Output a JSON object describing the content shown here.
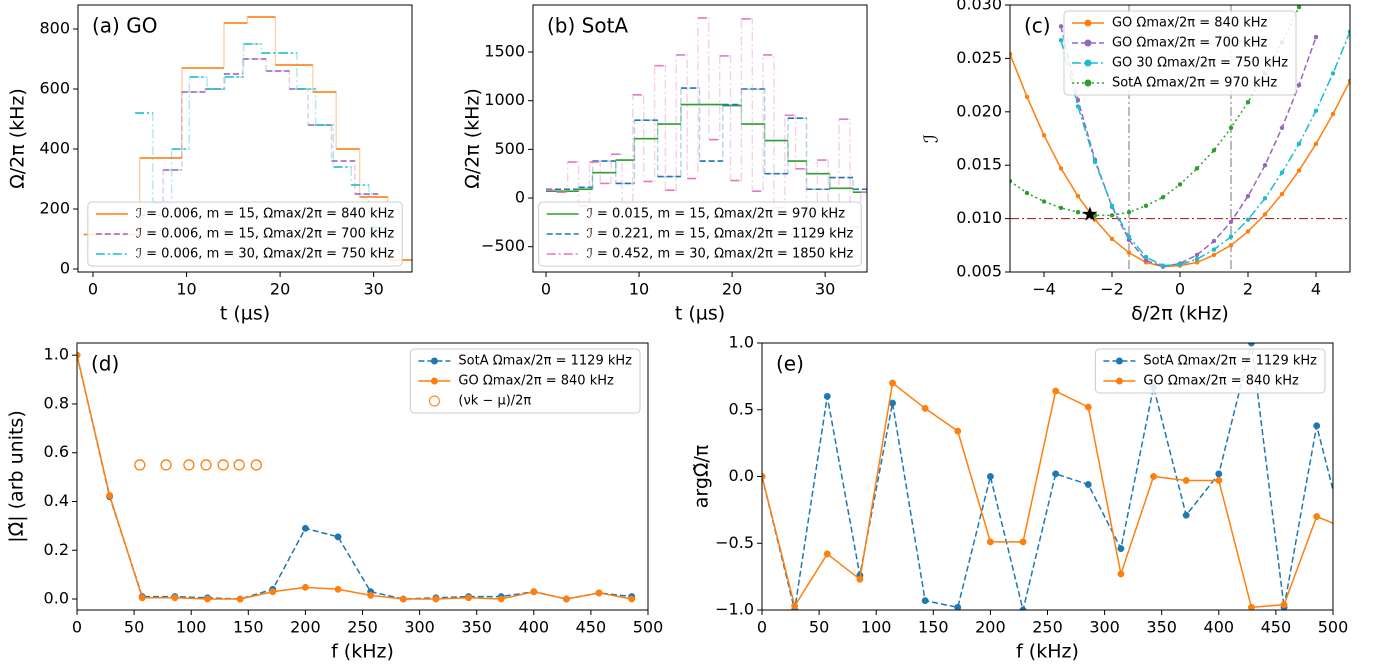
{
  "chart_data": [
    {
      "type": "step",
      "label": "(a) GO",
      "xlabel": "t (µs)",
      "ylabel": "Ω/2π (kHz)",
      "xlim": [
        -1.6,
        34.1
      ],
      "ylim": [
        -10,
        880
      ],
      "xticks": [
        0,
        10,
        20,
        30
      ],
      "yticks": [
        0,
        200,
        400,
        600,
        800
      ],
      "legend": "lower center",
      "series": [
        {
          "name": "ℐ = 0.006,  m = 15,  Ωmax/2π = 840 kHz",
          "color": "#ff7f0e",
          "line": "solid",
          "bins": [
            -1,
            5,
            9.5,
            14,
            16.5,
            19.5,
            23.5,
            26,
            28.5,
            31.5,
            35
          ],
          "values": [
            115,
            370,
            670,
            820,
            840,
            680,
            590,
            400,
            240,
            30
          ]
        },
        {
          "name": "ℐ = 0.006,  m = 15,  Ωmax/2π = 700 kHz",
          "color": "#9467bd",
          "line": "dashed",
          "bins": [
            5,
            7.5,
            9.5,
            12,
            14,
            16,
            18.5,
            21,
            23,
            25.5,
            28,
            30.5
          ],
          "values": [
            180,
            330,
            590,
            600,
            650,
            700,
            660,
            600,
            480,
            360,
            250
          ]
        },
        {
          "name": "ℐ = 0.006,  m = 30,  Ωmax/2π = 750 kHz",
          "color": "#17becf",
          "line": "dashdot",
          "bins": [
            4.5,
            6.4,
            8.4,
            10.3,
            12.2,
            14.1,
            16.1,
            18,
            19.9,
            21.8,
            23.8,
            25.7,
            27.6,
            29.5,
            31.5
          ],
          "values": [
            520,
            220,
            400,
            640,
            600,
            640,
            750,
            720,
            720,
            600,
            480,
            340,
            280,
            140
          ]
        }
      ]
    },
    {
      "type": "step",
      "label": "(b) SotA",
      "xlabel": "t (µs)",
      "ylabel": "Ω/2π (kHz)",
      "xlim": [
        -1.4,
        34.5
      ],
      "ylim": [
        -760,
        1983
      ],
      "xticks": [
        0,
        10,
        20,
        30
      ],
      "yticks": [
        {
          "value": -500,
          "label": "−500"
        },
        0,
        500,
        1000,
        1500
      ],
      "legend": "lower center",
      "series": [
        {
          "name": "ℐ = 0.015,  m = 15,  Ωmax/2π = 970 kHz",
          "color": "#2ca02c",
          "line": "solid",
          "bins": [
            0,
            3.5,
            5,
            7.5,
            9.5,
            12,
            14.5,
            16.5,
            19,
            21,
            23.5,
            26,
            28,
            30.5,
            33,
            35
          ],
          "values": [
            70,
            90,
            260,
            390,
            610,
            760,
            960,
            960,
            950,
            760,
            590,
            380,
            250,
            100,
            60
          ]
        },
        {
          "name": "ℐ = 0.221,  m = 15,  Ωmax/2π = 1129 kHz",
          "color": "#1f77b4",
          "line": "dashed",
          "bins": [
            0,
            3.5,
            5,
            7.5,
            9.5,
            12,
            14.5,
            16.5,
            19,
            21,
            23.5,
            26,
            28,
            30.5,
            33,
            35
          ],
          "values": [
            90,
            110,
            380,
            150,
            800,
            220,
            1130,
            380,
            960,
            1120,
            250,
            820,
            90,
            210,
            90
          ]
        },
        {
          "name": "ℐ = 0.452,  m = 30,  Ωmax/2π = 1850 kHz",
          "color": "#e377c2",
          "line": "dashdot",
          "bins": [
            0,
            1.17,
            2.33,
            3.5,
            4.67,
            5.83,
            7,
            8.17,
            9.33,
            10.5,
            11.67,
            12.83,
            14,
            15.17,
            16.33,
            17.5,
            18.67,
            19.83,
            21,
            22.17,
            23.33,
            24.5,
            25.67,
            26.83,
            28,
            29.17,
            30.33,
            31.5,
            32.67,
            33.83,
            35
          ],
          "values": [
            80,
            60,
            370,
            -80,
            370,
            150,
            450,
            -50,
            1060,
            170,
            1360,
            80,
            1470,
            200,
            1850,
            600,
            1460,
            180,
            1840,
            70,
            1470,
            -100,
            850,
            300,
            -150,
            390,
            -200,
            810,
            -300,
            60
          ]
        }
      ]
    },
    {
      "type": "line",
      "label": "(c)",
      "xlabel": "δ/2π (kHz)",
      "ylabel": "ℐ",
      "xlim": [
        -5,
        5
      ],
      "ylim": [
        0.005,
        0.03
      ],
      "xticks": [
        {
          "value": -4,
          "label": "−4"
        },
        {
          "value": -2,
          "label": "−2"
        },
        0,
        2,
        4
      ],
      "yticks": [
        {
          "value": 0.005,
          "label": "0.005"
        },
        {
          "value": 0.01,
          "label": "0.010"
        },
        {
          "value": 0.015,
          "label": "0.015"
        },
        {
          "value": 0.02,
          "label": "0.020"
        },
        {
          "value": 0.025,
          "label": "0.025"
        },
        {
          "value": 0.03,
          "label": "0.030"
        }
      ],
      "legend": "upper center",
      "hline": 0.01,
      "vlines": [
        -1.5,
        1.5
      ],
      "star": {
        "x": -2.65,
        "y": 0.0104
      },
      "series": [
        {
          "name": "GO Ωmax/2π = 840 kHz",
          "color": "#ff7f0e",
          "line": "solid",
          "marker": "filled",
          "x": [
            -5,
            -4.5,
            -4,
            -3.5,
            -3,
            -2.5,
            -2,
            -1.5,
            -1,
            -0.5,
            0,
            0.5,
            1,
            1.5,
            2,
            2.5,
            3,
            3.5,
            4,
            4.5,
            5
          ],
          "values": [
            0.0254,
            0.0214,
            0.0178,
            0.0147,
            0.0121,
            0.0099,
            0.0081,
            0.0068,
            0.0059,
            0.0055,
            0.0056,
            0.0059,
            0.0066,
            0.0075,
            0.0088,
            0.0104,
            0.0123,
            0.0145,
            0.017,
            0.0198,
            0.0229
          ]
        },
        {
          "name": "GO Ωmax/2π = 700 kHz",
          "color": "#9467bd",
          "line": "dashed",
          "marker": "filled",
          "x": [
            -3.5,
            -3,
            -2.5,
            -2,
            -1.5,
            -1,
            -0.5,
            0,
            0.5,
            1,
            1.5,
            2,
            2.5,
            3,
            3.5,
            4
          ],
          "values": [
            0.028,
            0.0211,
            0.0155,
            0.0111,
            0.008,
            0.0061,
            0.0055,
            0.0058,
            0.0066,
            0.0079,
            0.0097,
            0.0121,
            0.015,
            0.0185,
            0.0225,
            0.027
          ]
        },
        {
          "name": "GO 30 Ωmax/2π = 750 kHz",
          "color": "#17becf",
          "line": "dashdot",
          "marker": "filled",
          "x": [
            -3.5,
            -3,
            -2.5,
            -2,
            -1.5,
            -1,
            -0.5,
            0,
            0.5,
            1,
            1.5,
            2,
            2.5,
            3,
            3.5,
            4,
            4.5,
            5
          ],
          "values": [
            0.0267,
            0.0205,
            0.0153,
            0.0112,
            0.0083,
            0.0064,
            0.0056,
            0.0057,
            0.0062,
            0.0071,
            0.0083,
            0.0099,
            0.0119,
            0.0143,
            0.017,
            0.0201,
            0.0236,
            0.0275
          ]
        },
        {
          "name": "SotA Ωmax/2π = 970 kHz",
          "color": "#2ca02c",
          "line": "dotted",
          "marker": "filled",
          "x": [
            -5,
            -4.5,
            -4,
            -3.5,
            -3,
            -2.5,
            -2,
            -1.5,
            -1,
            -0.5,
            0,
            0.5,
            1,
            1.5,
            2,
            2.5,
            3,
            3.5
          ],
          "values": [
            0.0135,
            0.0124,
            0.0116,
            0.011,
            0.0106,
            0.0103,
            0.0103,
            0.0106,
            0.0112,
            0.012,
            0.0132,
            0.0147,
            0.0164,
            0.0185,
            0.0209,
            0.0236,
            0.0265,
            0.0298
          ]
        }
      ]
    },
    {
      "type": "line",
      "label": "(d)",
      "xlabel": "f (kHz)",
      "ylabel": "|Ω̃| (arb units)",
      "xlim": [
        0,
        500
      ],
      "ylim": [
        -0.045,
        1.05
      ],
      "xticks": [
        0,
        50,
        100,
        150,
        200,
        250,
        300,
        350,
        400,
        450,
        500
      ],
      "yticks": [
        {
          "value": 0,
          "label": "0.0"
        },
        {
          "value": 0.2,
          "label": "0.2"
        },
        {
          "value": 0.4,
          "label": "0.4"
        },
        {
          "value": 0.6,
          "label": "0.6"
        },
        {
          "value": 0.8,
          "label": "0.8"
        },
        {
          "value": 1,
          "label": "1.0"
        }
      ],
      "legend": "upper right",
      "x": [
        0,
        28.57,
        57.14,
        85.71,
        114.29,
        142.86,
        171.43,
        200,
        228.57,
        257.14,
        285.71,
        314.29,
        342.86,
        371.43,
        400,
        428.57,
        457.14,
        485.71
      ],
      "series": [
        {
          "name": "SotA  Ωmax/2π = 1129 kHz",
          "color": "#1f77b4",
          "line": "dashed",
          "marker": "filled",
          "values": [
            1.0,
            0.42,
            0.01,
            0.01,
            0.005,
            0.0,
            0.04,
            0.29,
            0.255,
            0.03,
            0.0,
            0.005,
            0.01,
            0.01,
            0.03,
            0.0,
            0.025,
            0.01
          ]
        },
        {
          "name": "GO Ωmax/2π = 840 kHz",
          "color": "#ff7f0e",
          "line": "solid",
          "marker": "filled",
          "values": [
            1.0,
            0.425,
            0.005,
            0.005,
            0.0,
            0.0,
            0.03,
            0.048,
            0.04,
            0.015,
            0.0,
            0.0,
            0.005,
            0.0,
            0.03,
            0.0,
            0.025,
            0.0
          ]
        },
        {
          "name": "(νk − μ)/2π",
          "color": "#ff7f0e",
          "line": "none",
          "marker": "open",
          "x": [
            55,
            78,
            98,
            113,
            128,
            142,
            157
          ],
          "values": [
            0.55,
            0.55,
            0.55,
            0.55,
            0.55,
            0.55,
            0.55
          ]
        }
      ]
    },
    {
      "type": "line",
      "label": "(e)",
      "xlabel": "f (kHz)",
      "ylabel": "argΩ̃/π",
      "xlim": [
        0,
        500
      ],
      "ylim": [
        -1,
        1
      ],
      "xticks": [
        0,
        50,
        100,
        150,
        200,
        250,
        300,
        350,
        400,
        450,
        500
      ],
      "yticks": [
        {
          "value": -1,
          "label": "−1.0"
        },
        {
          "value": -0.5,
          "label": "−0.5"
        },
        {
          "value": 0,
          "label": "0.0"
        },
        {
          "value": 0.5,
          "label": "0.5"
        },
        {
          "value": 1,
          "label": "1.0"
        }
      ],
      "legend": "upper right",
      "x": [
        0,
        28.57,
        57.14,
        85.71,
        114.29,
        142.86,
        171.43,
        200,
        228.57,
        257.14,
        285.71,
        314.29,
        342.86,
        371.43,
        400,
        428.57,
        457.14,
        485.71,
        514.29
      ],
      "series": [
        {
          "name": "SotA  Ωmax/2π = 1129 kHz",
          "color": "#1f77b4",
          "line": "dashed",
          "marker": "filled",
          "values": [
            0,
            -1.0,
            0.6,
            -0.74,
            0.55,
            -0.93,
            -0.98,
            0.0,
            -1.0,
            0.02,
            -0.06,
            -0.54,
            0.67,
            -0.29,
            0.02,
            1.0,
            -0.98,
            0.38,
            -0.58
          ]
        },
        {
          "name": "GO Ωmax/2π = 840 kHz",
          "color": "#ff7f0e",
          "line": "solid",
          "marker": "filled",
          "values": [
            0,
            -0.97,
            -0.58,
            -0.77,
            0.7,
            0.51,
            0.34,
            -0.49,
            -0.49,
            0.64,
            0.52,
            -0.73,
            0.0,
            -0.03,
            -0.03,
            -0.98,
            -0.96,
            -0.3,
            -0.4
          ]
        }
      ]
    }
  ]
}
